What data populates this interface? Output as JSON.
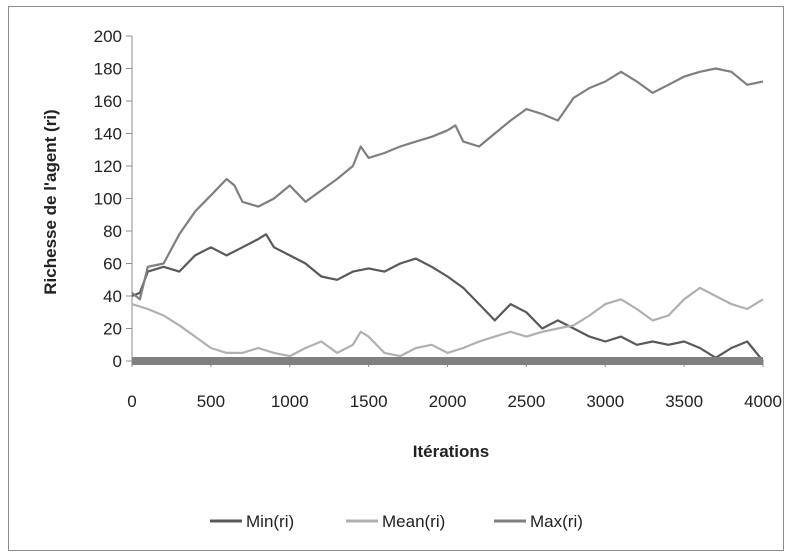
{
  "chart_data": {
    "type": "line",
    "title": "",
    "xlabel": "Itérations",
    "ylabel": "Richesse de l'agent (ri)",
    "xlim": [
      0,
      4000
    ],
    "ylim": [
      0,
      200
    ],
    "xticks": [
      0,
      500,
      1000,
      1500,
      2000,
      2500,
      3000,
      3500,
      4000
    ],
    "yticks": [
      0,
      20,
      40,
      60,
      80,
      100,
      120,
      140,
      160,
      180,
      200
    ],
    "grid": false,
    "legend_position": "bottom",
    "zero_band": {
      "color": "#808080",
      "value": 0
    },
    "series": [
      {
        "name": "Min(ri)",
        "color": "#595959",
        "x": [
          0,
          50,
          100,
          200,
          300,
          400,
          500,
          600,
          700,
          800,
          850,
          900,
          1000,
          1100,
          1200,
          1300,
          1400,
          1500,
          1600,
          1700,
          1800,
          1900,
          2000,
          2100,
          2200,
          2300,
          2400,
          2500,
          2600,
          2700,
          2800,
          2900,
          3000,
          3100,
          3200,
          3300,
          3400,
          3500,
          3600,
          3700,
          3800,
          3900,
          4000
        ],
        "y": [
          40,
          42,
          55,
          58,
          55,
          65,
          70,
          65,
          70,
          75,
          78,
          70,
          65,
          60,
          52,
          50,
          55,
          57,
          55,
          60,
          63,
          58,
          52,
          45,
          35,
          25,
          35,
          30,
          20,
          25,
          20,
          15,
          12,
          15,
          10,
          12,
          10,
          12,
          8,
          2,
          8,
          12,
          0
        ]
      },
      {
        "name": "Mean(ri)",
        "color": "#b0b0b0",
        "x": [
          0,
          100,
          200,
          300,
          400,
          500,
          600,
          700,
          800,
          900,
          1000,
          1100,
          1200,
          1300,
          1400,
          1450,
          1500,
          1600,
          1700,
          1800,
          1900,
          2000,
          2100,
          2200,
          2300,
          2400,
          2500,
          2600,
          2700,
          2800,
          2900,
          3000,
          3100,
          3200,
          3300,
          3400,
          3500,
          3600,
          3700,
          3800,
          3900,
          4000
        ],
        "y": [
          35,
          32,
          28,
          22,
          15,
          8,
          5,
          5,
          8,
          5,
          3,
          8,
          12,
          5,
          10,
          18,
          15,
          5,
          3,
          8,
          10,
          5,
          8,
          12,
          15,
          18,
          15,
          18,
          20,
          22,
          28,
          35,
          38,
          32,
          25,
          28,
          38,
          45,
          40,
          35,
          32,
          38
        ]
      },
      {
        "name": "Max(ri)",
        "color": "#7f7f7f",
        "x": [
          0,
          50,
          100,
          200,
          300,
          400,
          500,
          600,
          650,
          700,
          800,
          900,
          1000,
          1100,
          1200,
          1300,
          1400,
          1450,
          1500,
          1600,
          1700,
          1800,
          1900,
          2000,
          2050,
          2100,
          2200,
          2300,
          2400,
          2500,
          2600,
          2700,
          2800,
          2900,
          3000,
          3100,
          3200,
          3300,
          3400,
          3500,
          3600,
          3700,
          3800,
          3900,
          4000
        ],
        "y": [
          42,
          38,
          58,
          60,
          78,
          92,
          102,
          112,
          108,
          98,
          95,
          100,
          108,
          98,
          105,
          112,
          120,
          132,
          125,
          128,
          132,
          135,
          138,
          142,
          145,
          135,
          132,
          140,
          148,
          155,
          152,
          148,
          162,
          168,
          172,
          178,
          172,
          165,
          170,
          175,
          178,
          180,
          178,
          170,
          172
        ]
      }
    ]
  }
}
